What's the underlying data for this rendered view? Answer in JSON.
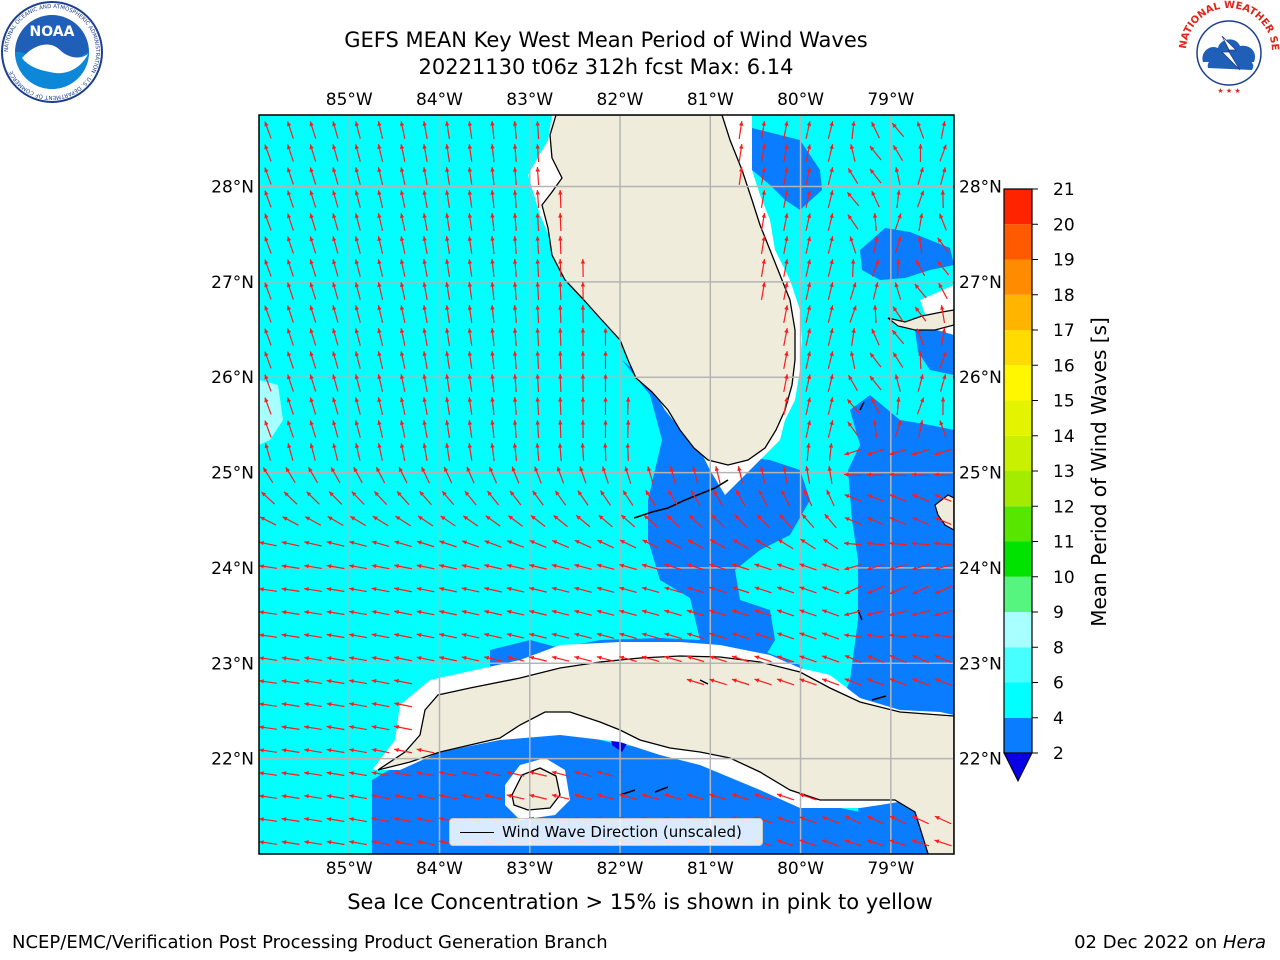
{
  "header": {
    "title_line1": "GEFS MEAN Key West Mean Period of Wind Waves",
    "title_line2": "20221130 t06z 312h fcst   Max: 6.14"
  },
  "logos": {
    "noaa_text": "NOAA",
    "noaa_ring_text": "NATIONAL OCEANIC AND ATMOSPHERIC ADMINISTRATION · U.S. DEPARTMENT OF COMMERCE",
    "nws_ring_text": "NATIONAL WEATHER SERVICE"
  },
  "map": {
    "lon_labels": [
      "85°W",
      "84°W",
      "83°W",
      "82°W",
      "81°W",
      "80°W",
      "79°W"
    ],
    "lat_labels": [
      "28°N",
      "27°N",
      "26°N",
      "25°N",
      "24°N",
      "23°N",
      "22°N"
    ],
    "lon_values": [
      -85,
      -84,
      -83,
      -82,
      -81,
      -80,
      -79
    ],
    "lat_values": [
      28,
      27,
      26,
      25,
      24,
      23,
      22
    ],
    "lon_range": [
      -86.0,
      -78.3
    ],
    "lat_range": [
      21.0,
      28.75
    ],
    "legend_label": "Wind Wave Direction (unscaled)"
  },
  "colorbar": {
    "label": "Mean Period of Wind Waves [s]",
    "tick_labels": [
      "2",
      "4",
      "6",
      "8",
      "9",
      "10",
      "11",
      "12",
      "13",
      "14",
      "15",
      "16",
      "17",
      "18",
      "19",
      "20",
      "21"
    ],
    "levels": [
      2,
      4,
      6,
      8,
      9,
      10,
      11,
      12,
      13,
      14,
      15,
      16,
      17,
      18,
      19,
      20,
      21
    ],
    "colors": [
      "#0a7cff",
      "#00ffff",
      "#47ffff",
      "#a7ffff",
      "#55f57f",
      "#00e300",
      "#56e600",
      "#a3ec00",
      "#c8f000",
      "#e4f400",
      "#fff700",
      "#ffdb00",
      "#ffb400",
      "#ff8c00",
      "#ff5a00",
      "#ff2400"
    ],
    "under_color": "#0a00e6"
  },
  "colors": {
    "ocean_cyan": "#00ffff",
    "ocean_blue": "#0a7cff",
    "land": "#efecdc",
    "arrow": "#ff1a1a",
    "grid": "#b4b4b4"
  },
  "notes": {
    "ice": "Sea Ice Concentration > 15% is shown in pink to yellow",
    "footer_left": "NCEP/EMC/Verification Post Processing Product Generation Branch",
    "footer_date": "02 Dec 2022 on ",
    "footer_machine": "Hera"
  }
}
